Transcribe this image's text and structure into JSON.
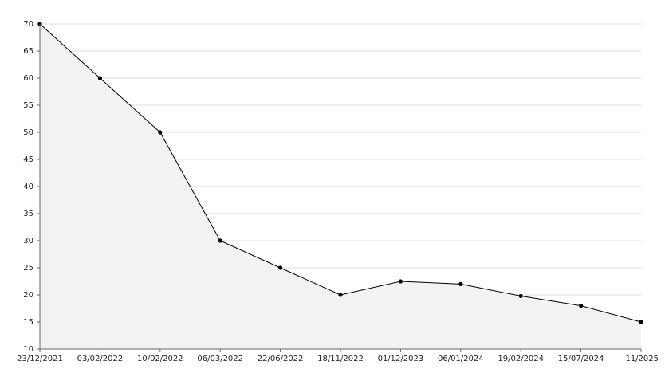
{
  "chart_data": {
    "type": "area",
    "categories": [
      "23/12/2021",
      "03/02/2022",
      "10/02/2022",
      "06/03/2022",
      "22/06/2022",
      "18/11/2022",
      "01/12/2023",
      "06/01/2024",
      "19/02/2024",
      "15/07/2024",
      "11/2025"
    ],
    "values": [
      70,
      60,
      50,
      30,
      25,
      20,
      22.5,
      22,
      19.8,
      18,
      15
    ],
    "color": "#000000",
    "fill": "#f2f2f2",
    "ylim": [
      10,
      70
    ],
    "yticks": [
      10,
      15,
      20,
      25,
      30,
      35,
      40,
      45,
      50,
      55,
      60,
      65,
      70
    ],
    "grid": true
  }
}
